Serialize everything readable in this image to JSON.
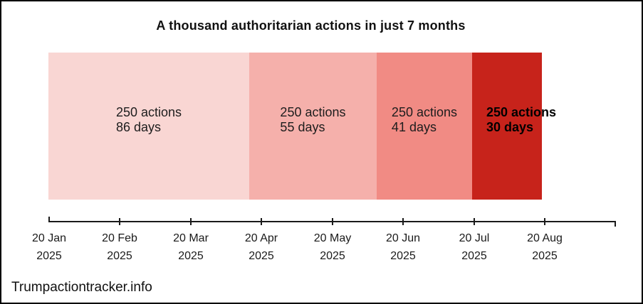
{
  "title": "A thousand authoritarian actions in just 7 months",
  "source": "Trumpactiontracker.info",
  "chart_data": {
    "type": "bar",
    "subtype": "proportional-timeline-bar",
    "title": "A thousand authoritarian actions in just 7 months",
    "orientation": "horizontal",
    "x_axis": {
      "unit": "date",
      "range": [
        "20 Jan 2025",
        "20 Sep 2025"
      ],
      "grid": false,
      "last_tick_unlabeled": true
    },
    "segments": [
      {
        "actions": 250,
        "days": 86,
        "actions_label": "250 actions",
        "days_label": "86 days",
        "color": "#f9d6d3",
        "width_pct": 40.69,
        "emphasis": false
      },
      {
        "actions": 250,
        "days": 55,
        "actions_label": "250 actions",
        "days_label": "55 days",
        "color": "#f5b0ab",
        "width_pct": 25.83,
        "emphasis": false
      },
      {
        "actions": 250,
        "days": 41,
        "actions_label": "250 actions",
        "days_label": "41 days",
        "color": "#f18b84",
        "width_pct": 19.34,
        "emphasis": false
      },
      {
        "actions": 250,
        "days": 30,
        "actions_label": "250 actions",
        "days_label": "30 days",
        "color": "#c7231b",
        "width_pct": 14.14,
        "emphasis": true
      }
    ],
    "x_ticks": [
      {
        "line1": "20 Jan",
        "line2": "2025"
      },
      {
        "line1": "20 Feb",
        "line2": "2025"
      },
      {
        "line1": "20 Mar",
        "line2": "2025"
      },
      {
        "line1": "20 Apr",
        "line2": "2025"
      },
      {
        "line1": "20 May",
        "line2": "2025"
      },
      {
        "line1": "20 Jun",
        "line2": "2025"
      },
      {
        "line1": "20 Jul",
        "line2": "2025"
      },
      {
        "line1": "20 Aug",
        "line2": "2025"
      }
    ],
    "source": "Trumpactiontracker.info",
    "colors": {
      "segment_ramp": [
        "#f9d6d3",
        "#f5b0ab",
        "#f18b84",
        "#c7231b"
      ],
      "axis": "#1a1a1a",
      "text": "#1a1a1a",
      "border": "#000000"
    }
  }
}
